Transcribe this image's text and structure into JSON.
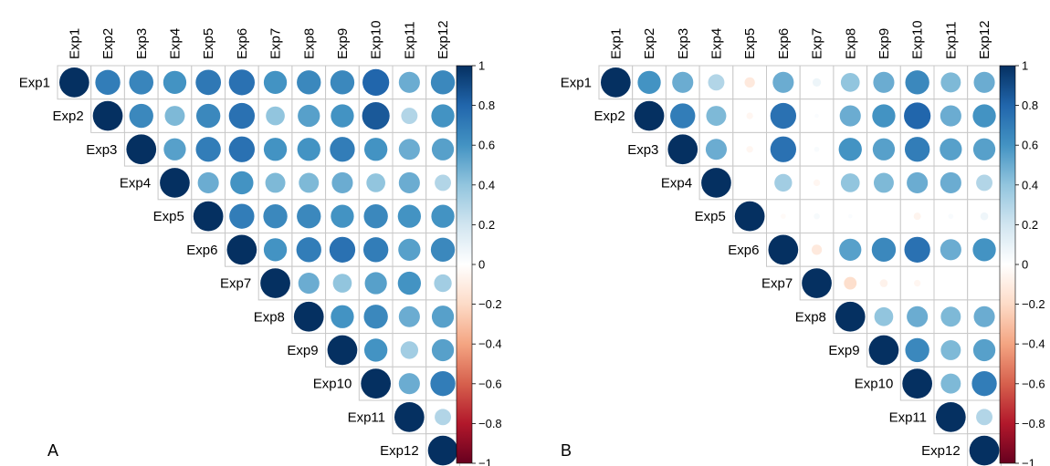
{
  "chart_data": [
    {
      "type": "heatmap",
      "subtype": "correlation-circles-upper-triangle",
      "panel_label": "A",
      "variables": [
        "Exp1",
        "Exp2",
        "Exp3",
        "Exp4",
        "Exp5",
        "Exp6",
        "Exp7",
        "Exp8",
        "Exp9",
        "Exp10",
        "Exp11",
        "Exp12"
      ],
      "matrix": [
        [
          1,
          0.7,
          0.66,
          0.6,
          0.72,
          0.75,
          0.6,
          0.65,
          0.65,
          0.8,
          0.5,
          0.65
        ],
        [
          null,
          1,
          0.65,
          0.45,
          0.65,
          0.75,
          0.4,
          0.55,
          0.6,
          0.85,
          0.3,
          0.6
        ],
        [
          null,
          null,
          1,
          0.55,
          0.7,
          0.75,
          0.6,
          0.6,
          0.7,
          0.6,
          0.5,
          0.55
        ],
        [
          null,
          null,
          null,
          1,
          0.5,
          0.6,
          0.45,
          0.45,
          0.5,
          0.4,
          0.5,
          0.3
        ],
        [
          null,
          null,
          null,
          null,
          1,
          0.7,
          0.65,
          0.65,
          0.6,
          0.65,
          0.6,
          0.6
        ],
        [
          null,
          null,
          null,
          null,
          null,
          1,
          0.6,
          0.7,
          0.75,
          0.7,
          0.55,
          0.65
        ],
        [
          null,
          null,
          null,
          null,
          null,
          null,
          1,
          0.5,
          0.4,
          0.55,
          0.6,
          0.35
        ],
        [
          null,
          null,
          null,
          null,
          null,
          null,
          null,
          1,
          0.6,
          0.65,
          0.5,
          0.55
        ],
        [
          null,
          null,
          null,
          null,
          null,
          null,
          null,
          null,
          1,
          0.6,
          0.35,
          0.55
        ],
        [
          null,
          null,
          null,
          null,
          null,
          null,
          null,
          null,
          null,
          1,
          0.5,
          0.7
        ],
        [
          null,
          null,
          null,
          null,
          null,
          null,
          null,
          null,
          null,
          null,
          1,
          0.3
        ],
        [
          null,
          null,
          null,
          null,
          null,
          null,
          null,
          null,
          null,
          null,
          null,
          1
        ]
      ],
      "colorbar": {
        "ticks": [
          "1",
          "0.8",
          "0.6",
          "0.4",
          "0.2",
          "0",
          "−0.2",
          "−0.4",
          "−0.6",
          "−0.8",
          "−1"
        ],
        "range": [
          -1,
          1
        ]
      }
    },
    {
      "type": "heatmap",
      "subtype": "correlation-circles-upper-triangle",
      "panel_label": "B",
      "variables": [
        "Exp1",
        "Exp2",
        "Exp3",
        "Exp4",
        "Exp5",
        "Exp6",
        "Exp7",
        "Exp8",
        "Exp9",
        "Exp10",
        "Exp11",
        "Exp12"
      ],
      "matrix": [
        [
          1,
          0.6,
          0.5,
          0.3,
          -0.12,
          0.5,
          0.08,
          0.4,
          0.5,
          0.65,
          0.45,
          0.5
        ],
        [
          null,
          1,
          0.7,
          0.45,
          -0.05,
          0.75,
          0.02,
          0.5,
          0.6,
          0.8,
          0.5,
          0.6
        ],
        [
          null,
          null,
          1,
          0.5,
          -0.05,
          0.75,
          0.03,
          0.6,
          0.55,
          0.7,
          0.55,
          0.55
        ],
        [
          null,
          null,
          null,
          1,
          0,
          0.35,
          -0.05,
          0.4,
          0.45,
          0.5,
          0.5,
          0.3
        ],
        [
          null,
          null,
          null,
          null,
          1,
          -0.03,
          0.04,
          0.02,
          0,
          -0.06,
          0.03,
          0.07
        ],
        [
          null,
          null,
          null,
          null,
          null,
          1,
          -0.12,
          0.55,
          0.65,
          0.75,
          0.5,
          0.6
        ],
        [
          null,
          null,
          null,
          null,
          null,
          null,
          1,
          -0.18,
          -0.07,
          -0.05,
          0,
          0
        ],
        [
          null,
          null,
          null,
          null,
          null,
          null,
          null,
          1,
          0.4,
          0.5,
          0.45,
          0.5
        ],
        [
          null,
          null,
          null,
          null,
          null,
          null,
          null,
          null,
          1,
          0.65,
          0.45,
          0.55
        ],
        [
          null,
          null,
          null,
          null,
          null,
          null,
          null,
          null,
          null,
          1,
          0.45,
          0.7
        ],
        [
          null,
          null,
          null,
          null,
          null,
          null,
          null,
          null,
          null,
          null,
          1,
          0.3
        ],
        [
          null,
          null,
          null,
          null,
          null,
          null,
          null,
          null,
          null,
          null,
          null,
          1
        ]
      ],
      "colorbar": {
        "ticks": [
          "1",
          "0.8",
          "0.6",
          "0.4",
          "0.2",
          "0",
          "−0.2",
          "−0.4",
          "−0.6",
          "−0.8",
          "−1"
        ],
        "range": [
          -1,
          1
        ]
      }
    }
  ]
}
